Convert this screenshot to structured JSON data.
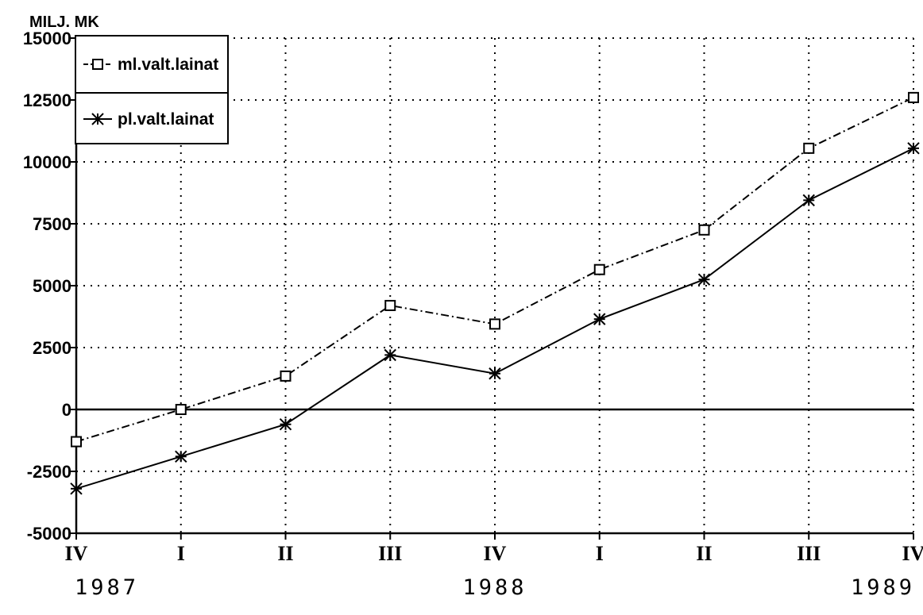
{
  "chart_data": {
    "type": "line",
    "ylabel": "MILJ. MK",
    "ylim": [
      -5000,
      15000
    ],
    "yticks": [
      -5000,
      -2500,
      0,
      2500,
      5000,
      7500,
      10000,
      12500,
      15000
    ],
    "ytick_labels": [
      "-5000",
      "-2500",
      "0",
      "2500",
      "5000",
      "7500",
      "10000",
      "12500",
      "15000"
    ],
    "categories": [
      "IV",
      "I",
      "II",
      "III",
      "IV",
      "I",
      "II",
      "III",
      "IV"
    ],
    "years": [
      {
        "label": "1987",
        "at_index": 0
      },
      {
        "label": "1988",
        "at_index": 4
      },
      {
        "label": "1989",
        "at_index": 8
      }
    ],
    "grid": true,
    "legend_position": "top-left",
    "series": [
      {
        "name": "ml.valt.lainat",
        "marker": "square",
        "line_style": "dash-dot",
        "values": [
          -1300,
          0,
          1350,
          4200,
          3450,
          5650,
          7250,
          10550,
          12600
        ]
      },
      {
        "name": "pl.valt.lainat",
        "marker": "asterisk",
        "line_style": "solid",
        "values": [
          -3200,
          -1900,
          -600,
          2200,
          1450,
          3650,
          5250,
          8450,
          10550
        ]
      }
    ]
  }
}
